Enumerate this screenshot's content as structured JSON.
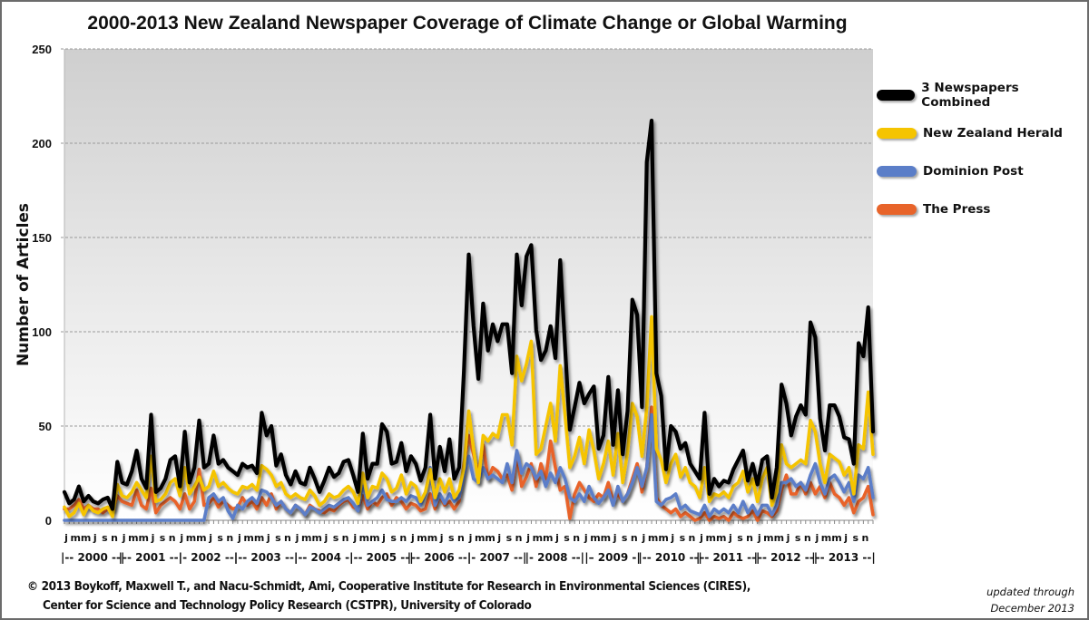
{
  "chart_data": {
    "type": "line",
    "title": "2000-2013 New Zealand Newspaper Coverage of Climate Change or Global Warming",
    "xlabel": "",
    "ylabel": "Number of Articles",
    "ylim": [
      0,
      250
    ],
    "yticks": [
      0,
      50,
      100,
      150,
      200,
      250
    ],
    "grid": true,
    "legend_position": "right",
    "month_tick_labels": [
      "j",
      "mm",
      "j",
      "s",
      "n"
    ],
    "year_labels": [
      "|-- 2000 --|",
      "|-- 2001 --|",
      "|- 2002 --|",
      "|-- 2003 --|",
      "|-- 2004 -|",
      "|-- 2005 --|",
      "|-- 2006 --|",
      "|- 2007 --|",
      "|- 2008 --|",
      "|– 2009 -|",
      "|-- 2010 --|",
      "|-- 2011 --|",
      "|-- 2012 --|",
      "|-- 2013 --|"
    ],
    "x_start": "2000-01",
    "x_end": "2013-12",
    "frequency": "monthly",
    "series": [
      {
        "name": "3 Newspapers Combined",
        "color": "#000000",
        "values": [
          15,
          9,
          11,
          18,
          10,
          13,
          10,
          9,
          11,
          12,
          6,
          31,
          20,
          19,
          26,
          37,
          22,
          17,
          56,
          15,
          17,
          22,
          32,
          34,
          18,
          47,
          20,
          28,
          53,
          28,
          30,
          45,
          30,
          32,
          28,
          26,
          24,
          30,
          28,
          29,
          25,
          57,
          45,
          50,
          29,
          35,
          24,
          19,
          26,
          20,
          19,
          28,
          22,
          15,
          21,
          28,
          23,
          25,
          31,
          32,
          24,
          15,
          46,
          22,
          30,
          30,
          51,
          47,
          30,
          31,
          41,
          26,
          34,
          30,
          21,
          28,
          56,
          22,
          39,
          26,
          43,
          22,
          28,
          79,
          141,
          103,
          75,
          115,
          90,
          104,
          95,
          104,
          104,
          78,
          141,
          114,
          140,
          146,
          101,
          85,
          90,
          103,
          86,
          138,
          92,
          48,
          60,
          73,
          62,
          67,
          71,
          38,
          45,
          76,
          40,
          69,
          35,
          58,
          117,
          109,
          60,
          190,
          212,
          78,
          66,
          27,
          50,
          47,
          38,
          41,
          30,
          26,
          22,
          57,
          14,
          22,
          18,
          21,
          20,
          27,
          32,
          37,
          21,
          30,
          19,
          32,
          34,
          12,
          28,
          72,
          62,
          45,
          55,
          61,
          56,
          105,
          97,
          54,
          37,
          61,
          61,
          55,
          44,
          43,
          30,
          94,
          87,
          113,
          47
        ]
      },
      {
        "name": "New Zealand Herald",
        "color": "#f5c400",
        "values": [
          7,
          2,
          4,
          9,
          3,
          8,
          5,
          4,
          6,
          7,
          2,
          19,
          13,
          12,
          15,
          20,
          16,
          12,
          34,
          10,
          11,
          14,
          20,
          22,
          13,
          28,
          14,
          18,
          23,
          16,
          18,
          26,
          18,
          20,
          17,
          15,
          14,
          18,
          17,
          19,
          16,
          29,
          27,
          24,
          18,
          20,
          14,
          12,
          14,
          12,
          11,
          16,
          13,
          8,
          10,
          14,
          12,
          13,
          16,
          18,
          15,
          9,
          25,
          12,
          18,
          17,
          25,
          22,
          15,
          17,
          24,
          14,
          20,
          18,
          10,
          15,
          27,
          12,
          22,
          15,
          22,
          12,
          16,
          28,
          58,
          38,
          20,
          45,
          42,
          46,
          44,
          56,
          56,
          40,
          87,
          74,
          83,
          95,
          35,
          38,
          50,
          62,
          42,
          82,
          56,
          28,
          34,
          44,
          30,
          48,
          37,
          22,
          30,
          42,
          24,
          46,
          20,
          36,
          62,
          55,
          34,
          60,
          108,
          38,
          32,
          20,
          30,
          35,
          23,
          28,
          20,
          18,
          12,
          28,
          10,
          14,
          13,
          15,
          12,
          18,
          20,
          26,
          15,
          22,
          10,
          22,
          28,
          8,
          15,
          40,
          30,
          28,
          30,
          32,
          30,
          53,
          47,
          30,
          20,
          35,
          33,
          31,
          24,
          28,
          14,
          40,
          38,
          68,
          35
        ]
      },
      {
        "name": "Dominion Post",
        "color": "#5b7ec8",
        "values": [
          0,
          0,
          0,
          0,
          0,
          0,
          0,
          0,
          0,
          0,
          0,
          0,
          0,
          0,
          0,
          0,
          0,
          0,
          0,
          0,
          0,
          0,
          0,
          0,
          0,
          0,
          0,
          0,
          0,
          0,
          12,
          14,
          10,
          12,
          5,
          1,
          8,
          6,
          10,
          12,
          9,
          16,
          15,
          12,
          8,
          10,
          6,
          4,
          8,
          6,
          3,
          7,
          6,
          4,
          6,
          8,
          7,
          9,
          11,
          12,
          9,
          5,
          20,
          8,
          10,
          12,
          16,
          11,
          10,
          10,
          12,
          10,
          13,
          12,
          8,
          14,
          28,
          8,
          14,
          9,
          14,
          10,
          12,
          24,
          34,
          22,
          20,
          28,
          22,
          24,
          22,
          20,
          30,
          20,
          37,
          25,
          30,
          28,
          22,
          26,
          18,
          25,
          20,
          28,
          22,
          12,
          10,
          14,
          10,
          18,
          12,
          9,
          12,
          16,
          8,
          18,
          10,
          14,
          20,
          28,
          18,
          28,
          56,
          10,
          8,
          11,
          12,
          14,
          6,
          8,
          5,
          4,
          3,
          8,
          2,
          6,
          4,
          6,
          4,
          8,
          4,
          10,
          4,
          8,
          3,
          8,
          8,
          3,
          8,
          20,
          20,
          22,
          18,
          20,
          16,
          24,
          30,
          20,
          14,
          22,
          24,
          20,
          15,
          20,
          10,
          24,
          22,
          28,
          12
        ]
      },
      {
        "name": "The Press",
        "color": "#e8642a",
        "values": [
          6,
          6,
          8,
          11,
          6,
          8,
          6,
          6,
          4,
          6,
          5,
          13,
          10,
          9,
          8,
          16,
          8,
          6,
          17,
          4,
          8,
          10,
          12,
          10,
          6,
          14,
          6,
          10,
          27,
          8,
          9,
          12,
          7,
          10,
          8,
          6,
          7,
          12,
          8,
          10,
          6,
          12,
          8,
          14,
          6,
          10,
          6,
          4,
          8,
          6,
          3,
          8,
          6,
          5,
          4,
          6,
          5,
          8,
          10,
          11,
          7,
          6,
          13,
          6,
          10,
          8,
          12,
          14,
          8,
          12,
          10,
          6,
          9,
          8,
          5,
          6,
          14,
          6,
          13,
          8,
          10,
          6,
          10,
          30,
          45,
          35,
          25,
          40,
          22,
          28,
          26,
          22,
          24,
          16,
          35,
          18,
          23,
          30,
          18,
          30,
          22,
          42,
          28,
          16,
          18,
          1,
          14,
          20,
          16,
          12,
          10,
          14,
          12,
          20,
          10,
          14,
          10,
          14,
          22,
          30,
          15,
          28,
          60,
          12,
          8,
          6,
          4,
          6,
          2,
          4,
          2,
          0,
          1,
          4,
          0,
          2,
          1,
          2,
          0,
          4,
          2,
          1,
          2,
          5,
          0,
          5,
          4,
          2,
          5,
          16,
          24,
          14,
          14,
          20,
          14,
          20,
          14,
          18,
          12,
          20,
          14,
          12,
          8,
          12,
          4,
          10,
          12,
          18,
          3
        ]
      }
    ]
  },
  "legend": {
    "items": [
      {
        "label": "3 Newspapers Combined",
        "color": "#000000"
      },
      {
        "label": "New Zealand Herald",
        "color": "#f5c400"
      },
      {
        "label": "Dominion Post",
        "color": "#5b7ec8"
      },
      {
        "label": "The Press",
        "color": "#e8642a"
      }
    ]
  },
  "footer": {
    "credit_line1": "© 2013 Boykoff, Maxwell T., and Nacu-Schmidt, Ami, Cooperative Institute for Research in Environmental Sciences (CIRES),",
    "credit_line2": "Center for Science and Technology Policy Research (CSTPR), University of Colorado",
    "updated_line1": "updated through",
    "updated_line2": "December 2013"
  }
}
